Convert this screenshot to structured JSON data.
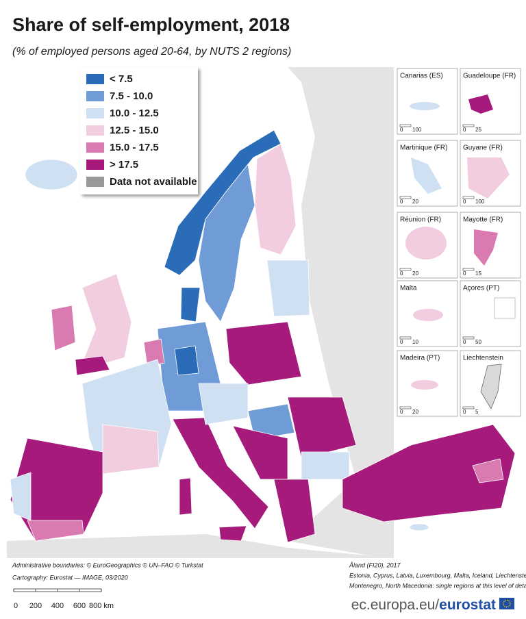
{
  "header": {
    "title": "Share of self-employment, 2018",
    "subtitle": "(% of employed persons aged 20-64, by NUTS 2 regions)"
  },
  "legend": {
    "items": [
      {
        "label": "< 7.5",
        "color": "#2b6cb8"
      },
      {
        "label": "7.5 - 10.0",
        "color": "#6f9bd6"
      },
      {
        "label": "10.0 - 12.5",
        "color": "#cfe0f3"
      },
      {
        "label": "12.5 - 15.0",
        "color": "#f2cde0"
      },
      {
        "label": "15.0 - 17.5",
        "color": "#d97bb0"
      },
      {
        "label": "> 17.5",
        "color": "#a51a7a"
      },
      {
        "label": "Data not available",
        "color": "#999999"
      }
    ]
  },
  "insets": [
    {
      "name": "Canarias (ES)",
      "scale_labels": [
        "0",
        "100"
      ]
    },
    {
      "name": "Guadeloupe (FR)",
      "scale_labels": [
        "0",
        "25"
      ]
    },
    {
      "name": "Martinique (FR)",
      "scale_labels": [
        "0",
        "20"
      ]
    },
    {
      "name": "Guyane (FR)",
      "scale_labels": [
        "0",
        "100"
      ]
    },
    {
      "name": "Réunion (FR)",
      "scale_labels": [
        "0",
        "20"
      ]
    },
    {
      "name": "Mayotte (FR)",
      "scale_labels": [
        "0",
        "15"
      ]
    },
    {
      "name": "Malta",
      "scale_labels": [
        "0",
        "10"
      ]
    },
    {
      "name": "Açores (PT)",
      "scale_labels": [
        "0",
        "50"
      ]
    },
    {
      "name": "Madeira (PT)",
      "scale_labels": [
        "0",
        "20"
      ]
    },
    {
      "name": "Liechtenstein",
      "scale_labels": [
        "0",
        "5"
      ]
    }
  ],
  "scale_bar": {
    "labels": [
      "0",
      "200",
      "400",
      "600",
      "800 km"
    ]
  },
  "footer": {
    "left": [
      "Administrative boundaries: © EuroGeographics © UN–FAO © Turkstat",
      "Cartography: Eurostat — IMAGE, 03/2020"
    ],
    "right": [
      "Åland (FI20), 2017",
      "Estonia, Cyprus, Latvia, Luxembourg, Malta, Iceland, Liechtenstein,",
      "Montenegro, North Macedonia: single regions at this level of detail"
    ],
    "logo": {
      "site": "ec.europa.eu/",
      "brand": "eurostat"
    }
  }
}
